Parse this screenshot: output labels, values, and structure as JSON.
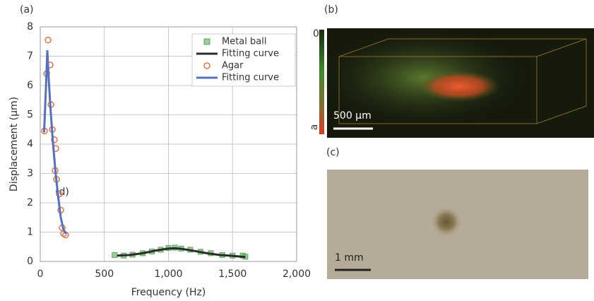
{
  "chart_data": {
    "type": "scatter",
    "xlabel": "Frequency (Hz)",
    "ylabel": "Displacement (µm)",
    "xlim": [
      0,
      2000
    ],
    "ylim": [
      0,
      8
    ],
    "xticks": [
      0,
      500,
      {
        "value": 1000,
        "label": "1,000"
      },
      {
        "value": 1500,
        "label": "1,500"
      },
      {
        "value": 2000,
        "label": "2,000"
      }
    ],
    "yticks": [
      0,
      1,
      2,
      3,
      4,
      5,
      6,
      7,
      8
    ],
    "grid": true,
    "legend": "upper right",
    "series": [
      {
        "name": "Metal ball",
        "color": "#5aa85a",
        "marker": "square",
        "x": [
          580,
          650,
          720,
          800,
          870,
          940,
          1000,
          1050,
          1100,
          1170,
          1250,
          1330,
          1420,
          1500,
          1580,
          1600
        ],
        "values": [
          0.22,
          0.2,
          0.23,
          0.28,
          0.34,
          0.4,
          0.46,
          0.47,
          0.44,
          0.4,
          0.33,
          0.28,
          0.22,
          0.2,
          0.2,
          0.16
        ]
      },
      {
        "name": "Fitting curve",
        "color": "#2b2b2b",
        "marker": "line",
        "x": [
          600,
          700,
          800,
          900,
          1000,
          1050,
          1100,
          1200,
          1300,
          1400,
          1500,
          1600
        ],
        "values": [
          0.2,
          0.22,
          0.28,
          0.37,
          0.44,
          0.45,
          0.43,
          0.36,
          0.28,
          0.22,
          0.19,
          0.15
        ]
      },
      {
        "name": "Agar",
        "color": "#e07a50",
        "marker": "circle",
        "x": [
          33,
          61,
          77,
          50,
          83,
          94,
          110,
          121,
          116,
          127,
          149,
          160,
          171,
          182,
          198
        ],
        "values": [
          4.45,
          7.55,
          6.7,
          6.4,
          5.35,
          4.5,
          4.15,
          3.85,
          3.1,
          2.8,
          2.3,
          1.75,
          1.15,
          0.95,
          0.9
        ]
      },
      {
        "name": "Fitting curve",
        "color": "#5570c0",
        "marker": "line",
        "x": [
          30,
          45,
          55,
          65,
          80,
          100,
          120,
          140,
          160,
          180,
          200
        ],
        "values": [
          4.4,
          6.0,
          7.2,
          6.3,
          5.2,
          4.0,
          3.0,
          2.2,
          1.5,
          1.1,
          0.95
        ]
      }
    ]
  },
  "panels": {
    "a": "(a)",
    "b": "(b)",
    "c": "(c)",
    "d": "(d)"
  },
  "image_b": {
    "colorbar_top": "0",
    "colorbar_bottom": "a",
    "scale_bar": "500 µm"
  },
  "image_c": {
    "scale_bar": "1 mm"
  }
}
